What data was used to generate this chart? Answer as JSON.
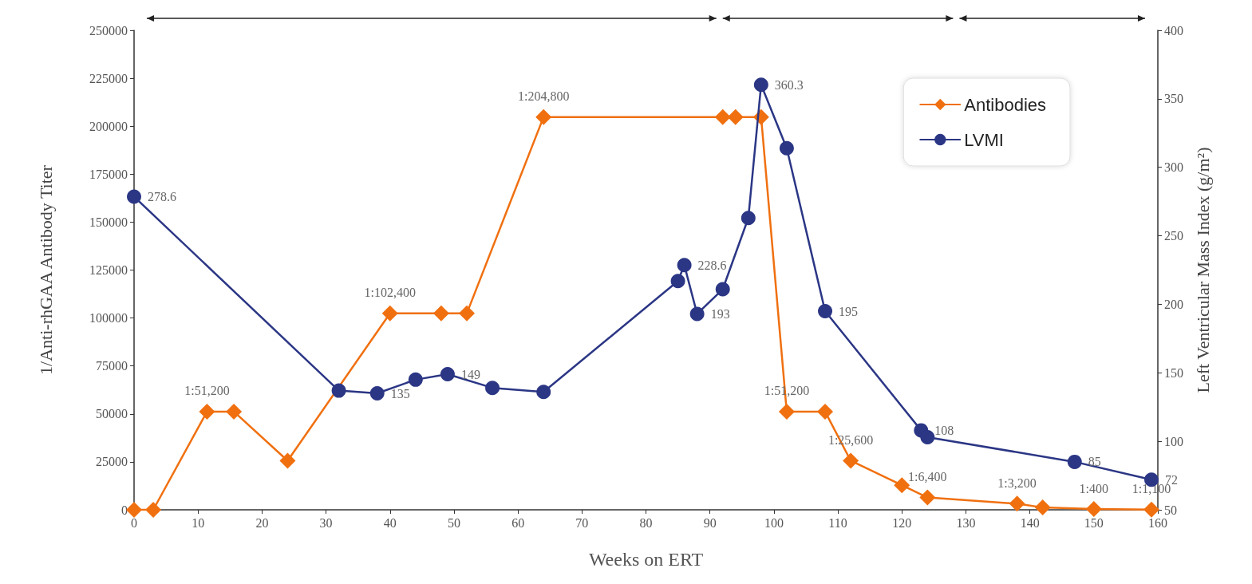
{
  "chart_data": {
    "type": "line",
    "xlabel": "Weeks on ERT",
    "ylabel": "1/Anti-rhGAA Antibody Titer",
    "y2label": "Left Ventricular Mass Index (g/m²)",
    "xlim": [
      0,
      160
    ],
    "xticks": [
      0,
      10,
      20,
      30,
      40,
      50,
      60,
      70,
      80,
      90,
      100,
      110,
      120,
      130,
      140,
      150,
      160
    ],
    "ylim": [
      0,
      250000
    ],
    "yticks": [
      0,
      25000,
      50000,
      75000,
      100000,
      125000,
      150000,
      175000,
      200000,
      225000,
      250000
    ],
    "y2lim": [
      50,
      400
    ],
    "y2ticks": [
      50,
      100,
      150,
      200,
      250,
      300,
      350,
      400
    ],
    "grid": false,
    "legend": "top right",
    "line_style": "solid",
    "series": [
      {
        "name": "Antibodies",
        "color": "#f07010",
        "marker": "diamond",
        "x": [
          0,
          3,
          11.4,
          15.6,
          24,
          40,
          48,
          52,
          64,
          92,
          94,
          98,
          102,
          108,
          112,
          120,
          124,
          138,
          142,
          150,
          159
        ],
        "values": [
          0,
          0,
          51200,
          51200,
          25600,
          102400,
          102400,
          102400,
          204800,
          204800,
          204800,
          204800,
          51200,
          51200,
          25600,
          12800,
          6400,
          3200,
          1200,
          400,
          100
        ],
        "value_labels": [
          null,
          null,
          "1:51,200",
          null,
          null,
          "1:102,400",
          null,
          null,
          "1:204,800",
          null,
          null,
          null,
          "1:51,200",
          null,
          "1:25,600",
          null,
          "1:6,400",
          "1:3,200",
          null,
          "1:400",
          "1:1,100"
        ]
      },
      {
        "name": "LVMI",
        "color": "#2b3685",
        "marker": "circle",
        "axis": "y2",
        "x": [
          0,
          32,
          38,
          44,
          49,
          56,
          64,
          85,
          86,
          88,
          92,
          96,
          98,
          102,
          108,
          123,
          124,
          147,
          159
        ],
        "values": [
          278.6,
          137,
          135,
          145,
          149,
          139,
          136,
          217,
          228.6,
          193,
          211,
          263,
          360.3,
          314,
          195,
          108,
          103,
          85,
          72
        ],
        "value_labels": [
          "278.6",
          null,
          "135",
          null,
          "149",
          null,
          null,
          null,
          "228.6",
          "193",
          null,
          null,
          "360.3",
          null,
          "195",
          "108",
          null,
          "85",
          "72"
        ]
      }
    ]
  }
}
